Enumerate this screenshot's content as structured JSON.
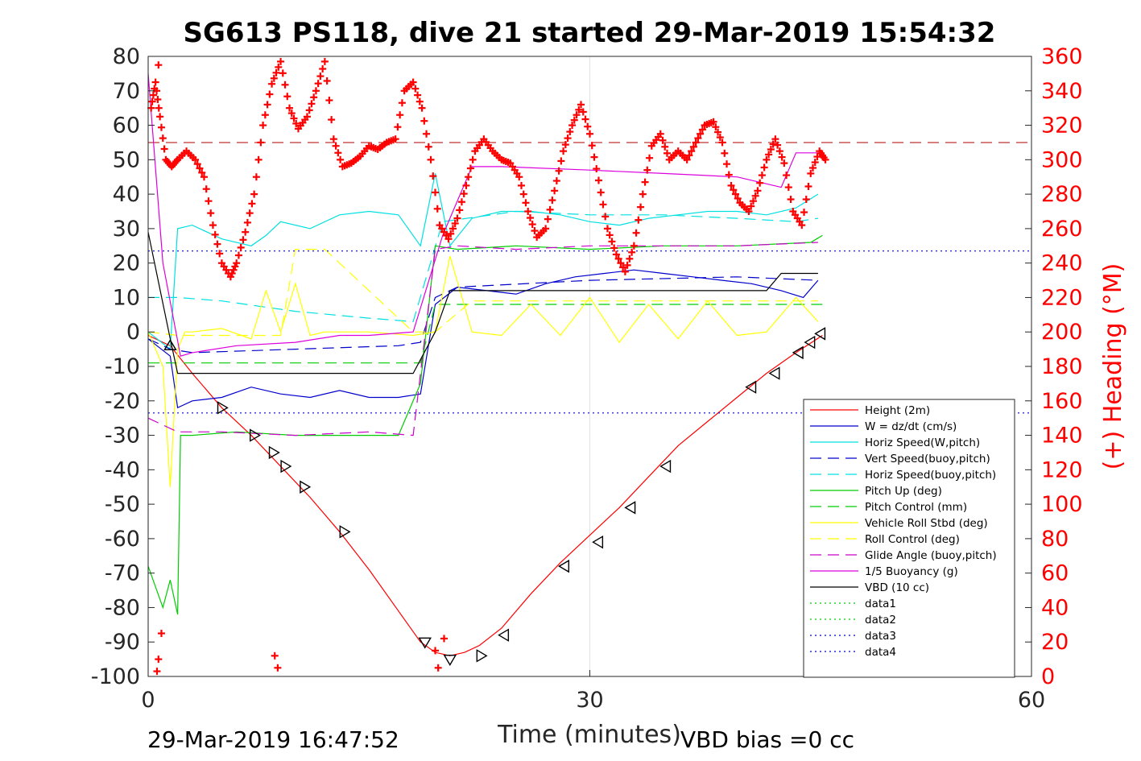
{
  "chart_data": {
    "type": "line",
    "title": "SG613 PS118, dive 21 started 29-Mar-2019 15:54:32",
    "xlabel": "Time (minutes)",
    "ylabel_right": "(+) Heading (°M)",
    "footer_left": "29-Mar-2019 16:47:52",
    "footer_right": "VBD bias =0 cc",
    "xlim": [
      0,
      60
    ],
    "ylim": [
      -100,
      80
    ],
    "ylim_right": [
      0,
      360
    ],
    "x_ticks": [
      "0",
      "30",
      "60"
    ],
    "y_ticks": [
      "80",
      "70",
      "60",
      "50",
      "40",
      "30",
      "20",
      "10",
      "0",
      "-10",
      "-20",
      "-30",
      "-40",
      "-50",
      "-60",
      "-70",
      "-80",
      "-90",
      "-100"
    ],
    "y_right_ticks": [
      "360",
      "340",
      "320",
      "300",
      "280",
      "260",
      "240",
      "220",
      "200",
      "180",
      "160",
      "140",
      "120",
      "100",
      "80",
      "60",
      "40",
      "20",
      "0"
    ],
    "grid": "x-only",
    "legend_position": "lower-right",
    "colors": {
      "height": "#ff0000",
      "w": "#0000cc",
      "horiz_speed_w": "#00e0e0",
      "vert_speed_buoy": "#0000cc",
      "horiz_speed_buoy": "#00e0e0",
      "pitch_up": "#00cc00",
      "pitch_control": "#00cc00",
      "roll": "#ffff00",
      "roll_control": "#ffff00",
      "glide_angle": "#cc00cc",
      "buoyancy": "#dd00dd",
      "vbd": "#000000",
      "data1": "#00cc00",
      "data2": "#00cc00",
      "data3": "#0000cc",
      "data4": "#0000cc",
      "heading": "#ff0000"
    },
    "series": [
      {
        "name": "Height (2m)",
        "style": "solid",
        "x": [
          0,
          1.5,
          3,
          5,
          7,
          9,
          11,
          13,
          15,
          17,
          18.5,
          19.5,
          20.5,
          21.5,
          22.5,
          24,
          26,
          28,
          30,
          32,
          34,
          36,
          38,
          40,
          42,
          44,
          45.8
        ],
        "y": [
          -1,
          -4,
          -12,
          -22,
          -30,
          -39,
          -48,
          -58,
          -69,
          -81,
          -90,
          -93,
          -94,
          -93,
          -91,
          -86,
          -76,
          -67,
          -59,
          -51,
          -42,
          -33,
          -26,
          -19,
          -12,
          -6,
          -1
        ]
      },
      {
        "name": "W = dz/dt (cm/s)",
        "style": "solid",
        "x": [
          0,
          1.5,
          2,
          3,
          5,
          7,
          9,
          11,
          13,
          15,
          17,
          18.5,
          19.5,
          21,
          23,
          25,
          27,
          29,
          31,
          33,
          35,
          37,
          39,
          41,
          43,
          44.5,
          45.5
        ],
        "y": [
          -2,
          -7,
          -22,
          -20,
          -19,
          -16,
          -18,
          -19,
          -17,
          -19,
          -19,
          -18,
          8,
          13,
          12,
          11,
          14,
          16,
          17,
          18,
          17,
          16,
          15,
          14,
          12,
          10,
          15
        ]
      },
      {
        "name": "Horiz Speed(W,pitch)",
        "style": "solid",
        "x": [
          0,
          1.5,
          2,
          3,
          5,
          7,
          8,
          9,
          11,
          13,
          15,
          17,
          18.5,
          19.5,
          20.5,
          22,
          24,
          26,
          28,
          30,
          32,
          34,
          36,
          38,
          40,
          42,
          44,
          45.5
        ],
        "y": [
          0,
          -5,
          30,
          31,
          27,
          25,
          28,
          32,
          30,
          34,
          35,
          34,
          25,
          46,
          25,
          33,
          35,
          35,
          34,
          32,
          31,
          33,
          34,
          35,
          35,
          34,
          36,
          40
        ]
      },
      {
        "name": "Vert Speed(buoy,pitch)",
        "style": "dash",
        "x": [
          0,
          1.5,
          3,
          10,
          17,
          18.5,
          19.5,
          21,
          30,
          40,
          45.5
        ],
        "y": [
          -2,
          -5,
          -6,
          -5,
          -4,
          -3,
          10,
          13,
          15,
          16,
          15
        ]
      },
      {
        "name": "Horiz Speed(buoy,pitch)",
        "style": "dash",
        "x": [
          0,
          2,
          5,
          10,
          15,
          18,
          20,
          25,
          30,
          35,
          40,
          44,
          45.5
        ],
        "y": [
          10,
          10,
          9,
          6,
          4,
          3,
          32,
          35,
          34,
          34,
          33,
          32,
          33
        ]
      },
      {
        "name": "Pitch Up (deg)",
        "style": "solid",
        "x": [
          0,
          1,
          1.5,
          2,
          2.2,
          3,
          6,
          10,
          14,
          17,
          18.5,
          19.5,
          21,
          25,
          30,
          35,
          40,
          45,
          45.8
        ],
        "y": [
          -68,
          -80,
          -72,
          -82,
          -30,
          -30,
          -29,
          -30,
          -30,
          -30,
          -15,
          25,
          24,
          25,
          24,
          25,
          25,
          26,
          28
        ]
      },
      {
        "name": "Pitch Control (mm)",
        "style": "dash",
        "x": [
          0,
          2,
          18.5,
          19.5,
          46
        ],
        "y": [
          -9,
          -9,
          -9,
          8,
          8
        ]
      },
      {
        "name": "Vehicle Roll Stbd (deg)",
        "style": "solid",
        "x": [
          0,
          1,
          1.5,
          2,
          2.5,
          3,
          5,
          7,
          8,
          9,
          10,
          11,
          12,
          15,
          18,
          19.5,
          20.5,
          22,
          24,
          26,
          28,
          30,
          32,
          34,
          36,
          38,
          40,
          42,
          44,
          45.5
        ],
        "y": [
          0,
          -10,
          -45,
          -5,
          0,
          0,
          1,
          -2,
          12,
          0,
          14,
          -1,
          0,
          0,
          -1,
          0,
          22,
          0,
          -1,
          8,
          -1,
          10,
          -3,
          8,
          -2,
          9,
          -1,
          0,
          10,
          3
        ]
      },
      {
        "name": "Roll Control (deg)",
        "style": "dash",
        "x": [
          0,
          2,
          5,
          9,
          10,
          12,
          18,
          19.5,
          22,
          30,
          40,
          45.5
        ],
        "y": [
          0,
          -1,
          -1,
          -1,
          24,
          24,
          0,
          0,
          9,
          9,
          9,
          9
        ]
      },
      {
        "name": "Glide Angle (buoy,pitch)",
        "style": "dash",
        "x": [
          0,
          2,
          5,
          10,
          15,
          18,
          19.5,
          21,
          25,
          30,
          35,
          40,
          45.5
        ],
        "y": [
          -25,
          -29,
          -29,
          -30,
          -29,
          -30,
          24,
          25,
          24,
          25,
          25,
          25,
          26
        ]
      },
      {
        "name": "1/5 Buoyancy (g)",
        "style": "solid",
        "x": [
          0,
          1,
          2.2,
          3,
          6,
          10,
          13,
          15,
          18,
          20,
          22,
          24,
          30,
          35,
          40,
          43,
          44,
          45.5
        ],
        "y": [
          75,
          20,
          -7,
          -6,
          -4,
          -3,
          -1,
          -1,
          0,
          28,
          48,
          48,
          47,
          46,
          45,
          42,
          52,
          52
        ]
      },
      {
        "name": "VBD (10 cc)",
        "style": "solid",
        "x": [
          0,
          1.5,
          2,
          18,
          19.5,
          20.5,
          24,
          30,
          40,
          42,
          43,
          45.5
        ],
        "y": [
          29,
          -2,
          -12,
          -12,
          0,
          12,
          12,
          12,
          12,
          12,
          17,
          17
        ]
      },
      {
        "name": "data1",
        "style": "dot",
        "x": [],
        "y": []
      },
      {
        "name": "data2",
        "style": "dot",
        "x": [],
        "y": []
      },
      {
        "name": "data3",
        "style": "dot",
        "x": [
          0,
          60
        ],
        "y": [
          23.5,
          23.5
        ]
      },
      {
        "name": "data4",
        "style": "dot",
        "x": [
          0,
          60
        ],
        "y": [
          -23.5,
          -23.5
        ]
      }
    ],
    "heading_reference_deg": 310,
    "heading_points": {
      "t": [
        0.2,
        0.5,
        0.8,
        1.2,
        1.6,
        2,
        2.6,
        3.2,
        3.8,
        4.4,
        5,
        5.6,
        6,
        6.6,
        7.2,
        7.8,
        8.4,
        9,
        9.6,
        10.2,
        10.8,
        11.4,
        12,
        12.6,
        13.2,
        13.8,
        14.4,
        15,
        15.6,
        16.2,
        16.8,
        17.4,
        18,
        18.6,
        19.2,
        19.8,
        20.4,
        21,
        21.6,
        22.2,
        22.8,
        23.4,
        24,
        24.6,
        25.2,
        25.8,
        26.4,
        27,
        27.6,
        28.2,
        28.8,
        29.4,
        30,
        30.6,
        31.2,
        31.8,
        32.4,
        33,
        33.6,
        34.2,
        34.8,
        35.4,
        36,
        36.6,
        37.2,
        37.8,
        38.4,
        39,
        39.6,
        40.2,
        40.8,
        41.4,
        42,
        42.6,
        43.2,
        43.8,
        44.4,
        45,
        45.6,
        46
      ],
      "deg": [
        330,
        345,
        325,
        300,
        296,
        300,
        305,
        300,
        290,
        262,
        240,
        232,
        240,
        258,
        280,
        320,
        344,
        357,
        330,
        318,
        325,
        340,
        357,
        312,
        296,
        298,
        302,
        308,
        306,
        310,
        312,
        340,
        345,
        330,
        300,
        262,
        254,
        266,
        285,
        305,
        312,
        305,
        300,
        298,
        290,
        270,
        255,
        260,
        282,
        305,
        320,
        332,
        315,
        288,
        260,
        245,
        235,
        250,
        280,
        308,
        315,
        300,
        305,
        300,
        310,
        320,
        322,
        310,
        285,
        275,
        270,
        282,
        300,
        312,
        298,
        270,
        262,
        292,
        305,
        300
      ]
    },
    "heading_outliers": [
      {
        "t": 0.7,
        "deg": 355
      },
      {
        "t": 0.9,
        "deg": 25
      },
      {
        "t": 0.7,
        "deg": 10
      },
      {
        "t": 0.6,
        "deg": 3
      },
      {
        "t": 8.6,
        "deg": 12
      },
      {
        "t": 8.8,
        "deg": 5
      },
      {
        "t": 19.5,
        "deg": 15
      },
      {
        "t": 19.7,
        "deg": 5
      },
      {
        "t": 20.1,
        "deg": 22
      }
    ],
    "markers": [
      {
        "x": 1.5,
        "y": -4,
        "dir": "up"
      },
      {
        "x": 5,
        "y": -22,
        "dir": "right"
      },
      {
        "x": 7.2,
        "y": -30,
        "dir": "right"
      },
      {
        "x": 8.5,
        "y": -35,
        "dir": "right"
      },
      {
        "x": 9.3,
        "y": -39,
        "dir": "right"
      },
      {
        "x": 10.6,
        "y": -45,
        "dir": "right"
      },
      {
        "x": 13.3,
        "y": -58,
        "dir": "right"
      },
      {
        "x": 18.8,
        "y": -90,
        "dir": "down"
      },
      {
        "x": 20.5,
        "y": -95,
        "dir": "down"
      },
      {
        "x": 22.6,
        "y": -94,
        "dir": "right"
      },
      {
        "x": 24.2,
        "y": -88,
        "dir": "left"
      },
      {
        "x": 28.3,
        "y": -68,
        "dir": "left"
      },
      {
        "x": 30.6,
        "y": -61,
        "dir": "left"
      },
      {
        "x": 32.8,
        "y": -51,
        "dir": "left"
      },
      {
        "x": 35.2,
        "y": -39,
        "dir": "left"
      },
      {
        "x": 41,
        "y": -16,
        "dir": "left"
      },
      {
        "x": 42.6,
        "y": -12,
        "dir": "left"
      },
      {
        "x": 44.2,
        "y": -6,
        "dir": "left"
      },
      {
        "x": 45,
        "y": -3,
        "dir": "left"
      },
      {
        "x": 45.7,
        "y": -0.5,
        "dir": "left"
      }
    ]
  }
}
